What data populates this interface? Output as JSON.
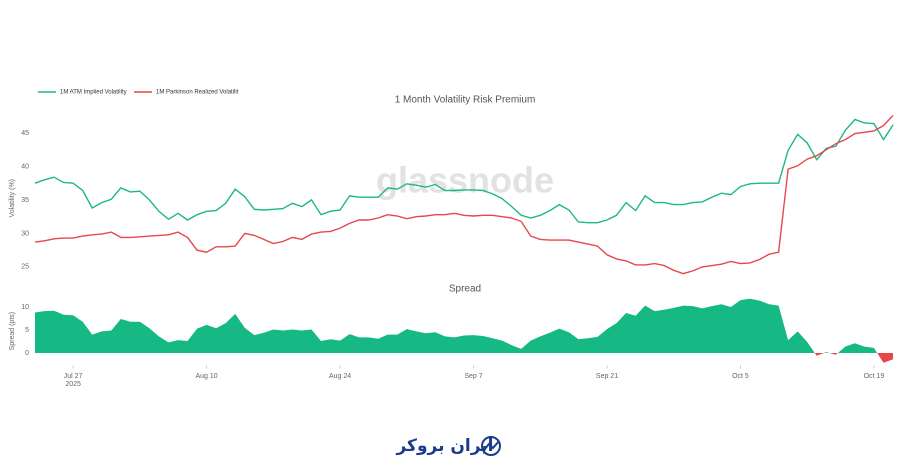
{
  "chart_data": [
    {
      "type": "line",
      "title": "1 Month Volatility Risk Premium",
      "y_label": "Volatility (%)",
      "watermark": "glassnode",
      "x": [
        "2025-07-23",
        "2025-07-24",
        "2025-07-25",
        "2025-07-26",
        "2025-07-27",
        "2025-07-28",
        "2025-07-29",
        "2025-07-30",
        "2025-07-31",
        "2025-08-01",
        "2025-08-02",
        "2025-08-03",
        "2025-08-04",
        "2025-08-05",
        "2025-08-06",
        "2025-08-07",
        "2025-08-08",
        "2025-08-09",
        "2025-08-10",
        "2025-08-11",
        "2025-08-12",
        "2025-08-13",
        "2025-08-14",
        "2025-08-15",
        "2025-08-16",
        "2025-08-17",
        "2025-08-18",
        "2025-08-19",
        "2025-08-20",
        "2025-08-21",
        "2025-08-22",
        "2025-08-23",
        "2025-08-24",
        "2025-08-25",
        "2025-08-26",
        "2025-08-27",
        "2025-08-28",
        "2025-08-29",
        "2025-08-30",
        "2025-08-31",
        "2025-09-01",
        "2025-09-02",
        "2025-09-03",
        "2025-09-04",
        "2025-09-05",
        "2025-09-06",
        "2025-09-07",
        "2025-09-08",
        "2025-09-09",
        "2025-09-10",
        "2025-09-11",
        "2025-09-12",
        "2025-09-13",
        "2025-09-14",
        "2025-09-15",
        "2025-09-16",
        "2025-09-17",
        "2025-09-18",
        "2025-09-19",
        "2025-09-20",
        "2025-09-21",
        "2025-09-22",
        "2025-09-23",
        "2025-09-24",
        "2025-09-25",
        "2025-09-26",
        "2025-09-27",
        "2025-09-28",
        "2025-09-29",
        "2025-09-30",
        "2025-10-01",
        "2025-10-02",
        "2025-10-03",
        "2025-10-04",
        "2025-10-05",
        "2025-10-06",
        "2025-10-07",
        "2025-10-08",
        "2025-10-09",
        "2025-10-10",
        "2025-10-11",
        "2025-10-12",
        "2025-10-13",
        "2025-10-14",
        "2025-10-15",
        "2025-10-16",
        "2025-10-17",
        "2025-10-18",
        "2025-10-19",
        "2025-10-20",
        "2025-10-21"
      ],
      "xlim": [
        "2025-07-23",
        "2025-10-21"
      ],
      "series": [
        {
          "name": "1M ATM Implied Volatility",
          "color": "#1db884",
          "values": [
            37.5,
            38.0,
            38.4,
            37.6,
            37.5,
            36.4,
            33.8,
            34.6,
            35.1,
            36.8,
            36.2,
            36.3,
            35.0,
            33.3,
            32.1,
            33.0,
            32.0,
            32.8,
            33.3,
            33.4,
            34.5,
            36.6,
            35.5,
            33.6,
            33.5,
            33.6,
            33.7,
            34.5,
            34.0,
            35.0,
            32.8,
            33.3,
            33.5,
            35.6,
            35.4,
            35.4,
            35.4,
            36.8,
            36.6,
            37.4,
            37.2,
            36.9,
            37.3,
            36.4,
            36.4,
            36.5,
            36.5,
            36.4,
            35.9,
            35.2,
            34.0,
            32.7,
            32.3,
            32.7,
            33.4,
            34.3,
            33.5,
            31.7,
            31.6,
            31.6,
            32.0,
            32.7,
            34.6,
            33.4,
            35.6,
            34.6,
            34.6,
            34.3,
            34.3,
            34.6,
            34.7,
            35.4,
            36.0,
            35.8,
            37.0,
            37.4,
            37.5,
            37.5,
            37.5,
            42.4,
            44.8,
            43.5,
            41.0,
            42.7,
            43.0,
            45.4,
            47.0,
            46.5,
            46.4,
            44.0,
            46.2
          ]
        },
        {
          "name": "1M Parkinson Realized Volatilit",
          "color": "#e8474a",
          "values": [
            28.7,
            28.9,
            29.2,
            29.3,
            29.3,
            29.6,
            29.8,
            29.9,
            30.2,
            29.4,
            29.4,
            29.5,
            29.6,
            29.7,
            29.8,
            30.2,
            29.4,
            27.5,
            27.2,
            28.0,
            28.0,
            28.1,
            30.0,
            29.7,
            29.1,
            28.5,
            28.8,
            29.4,
            29.1,
            29.9,
            30.2,
            30.3,
            30.8,
            31.5,
            32.0,
            32.0,
            32.3,
            32.8,
            32.6,
            32.2,
            32.5,
            32.6,
            32.8,
            32.8,
            33.0,
            32.7,
            32.6,
            32.7,
            32.7,
            32.5,
            32.3,
            31.8,
            29.6,
            29.1,
            29.0,
            29.0,
            29.0,
            28.7,
            28.4,
            28.1,
            26.8,
            26.2,
            25.9,
            25.3,
            25.3,
            25.5,
            25.2,
            24.5,
            24.0,
            24.4,
            25.0,
            25.2,
            25.4,
            25.8,
            25.5,
            25.6,
            26.1,
            26.9,
            27.2,
            39.6,
            40.1,
            41.1,
            41.6,
            42.5,
            43.4,
            44.0,
            44.9,
            45.1,
            45.3,
            46.1,
            47.6
          ]
        }
      ],
      "ylim": [
        22,
        48.5
      ],
      "yticks": [
        25,
        30,
        35,
        40,
        45
      ],
      "grid": false,
      "legend": "top-left"
    },
    {
      "type": "area",
      "title": "Spread",
      "y_label": "Spread (pts)",
      "x": [
        "2025-07-23",
        "2025-07-24",
        "2025-07-25",
        "2025-07-26",
        "2025-07-27",
        "2025-07-28",
        "2025-07-29",
        "2025-07-30",
        "2025-07-31",
        "2025-08-01",
        "2025-08-02",
        "2025-08-03",
        "2025-08-04",
        "2025-08-05",
        "2025-08-06",
        "2025-08-07",
        "2025-08-08",
        "2025-08-09",
        "2025-08-10",
        "2025-08-11",
        "2025-08-12",
        "2025-08-13",
        "2025-08-14",
        "2025-08-15",
        "2025-08-16",
        "2025-08-17",
        "2025-08-18",
        "2025-08-19",
        "2025-08-20",
        "2025-08-21",
        "2025-08-22",
        "2025-08-23",
        "2025-08-24",
        "2025-08-25",
        "2025-08-26",
        "2025-08-27",
        "2025-08-28",
        "2025-08-29",
        "2025-08-30",
        "2025-08-31",
        "2025-09-01",
        "2025-09-02",
        "2025-09-03",
        "2025-09-04",
        "2025-09-05",
        "2025-09-06",
        "2025-09-07",
        "2025-09-08",
        "2025-09-09",
        "2025-09-10",
        "2025-09-11",
        "2025-09-12",
        "2025-09-13",
        "2025-09-14",
        "2025-09-15",
        "2025-09-16",
        "2025-09-17",
        "2025-09-18",
        "2025-09-19",
        "2025-09-20",
        "2025-09-21",
        "2025-09-22",
        "2025-09-23",
        "2025-09-24",
        "2025-09-25",
        "2025-09-26",
        "2025-09-27",
        "2025-09-28",
        "2025-09-29",
        "2025-09-30",
        "2025-10-01",
        "2025-10-02",
        "2025-10-03",
        "2025-10-04",
        "2025-10-05",
        "2025-10-06",
        "2025-10-07",
        "2025-10-08",
        "2025-10-09",
        "2025-10-10",
        "2025-10-11",
        "2025-10-12",
        "2025-10-13",
        "2025-10-14",
        "2025-10-15",
        "2025-10-16",
        "2025-10-17",
        "2025-10-18",
        "2025-10-19",
        "2025-10-20",
        "2025-10-21"
      ],
      "xlim": [
        "2025-07-23",
        "2025-10-21"
      ],
      "values": [
        8.8,
        9.1,
        9.2,
        8.3,
        8.2,
        6.8,
        4.0,
        4.7,
        4.9,
        7.4,
        6.8,
        6.8,
        5.4,
        3.6,
        2.3,
        2.8,
        2.6,
        5.3,
        6.1,
        5.4,
        6.5,
        8.5,
        5.5,
        3.9,
        4.4,
        5.1,
        4.9,
        5.1,
        4.9,
        5.1,
        2.6,
        3.0,
        2.7,
        4.1,
        3.4,
        3.4,
        3.1,
        4.0,
        4.0,
        5.2,
        4.7,
        4.3,
        4.5,
        3.6,
        3.4,
        3.8,
        3.9,
        3.7,
        3.2,
        2.7,
        1.7,
        0.9,
        2.7,
        3.6,
        4.4,
        5.3,
        4.5,
        3.0,
        3.2,
        3.5,
        5.2,
        6.5,
        8.7,
        8.1,
        10.3,
        9.1,
        9.4,
        9.8,
        10.3,
        10.2,
        9.7,
        10.2,
        10.6,
        10.0,
        11.5,
        11.8,
        11.4,
        10.6,
        10.3,
        2.8,
        4.7,
        2.4,
        -0.6,
        0.2,
        -0.4,
        1.4,
        2.1,
        1.4,
        1.1,
        -2.1,
        -1.4
      ],
      "color": "#16b883",
      "negative_color": "#e8474a",
      "ylim": [
        -2.5,
        12
      ],
      "yticks": [
        0,
        5,
        10
      ],
      "xticks": [
        {
          "value": "2025-07-27",
          "label": "Jul 27"
        },
        {
          "value": "2025-08-10",
          "label": "Aug 10"
        },
        {
          "value": "2025-08-24",
          "label": "Aug 24"
        },
        {
          "value": "2025-09-07",
          "label": "Sep 7"
        },
        {
          "value": "2025-09-21",
          "label": "Sep 21"
        },
        {
          "value": "2025-10-05",
          "label": "Oct 5"
        },
        {
          "value": "2025-10-19",
          "label": "Oct 19"
        }
      ],
      "x_year_label": "2025"
    }
  ],
  "logo_text": "ایران بروکر"
}
